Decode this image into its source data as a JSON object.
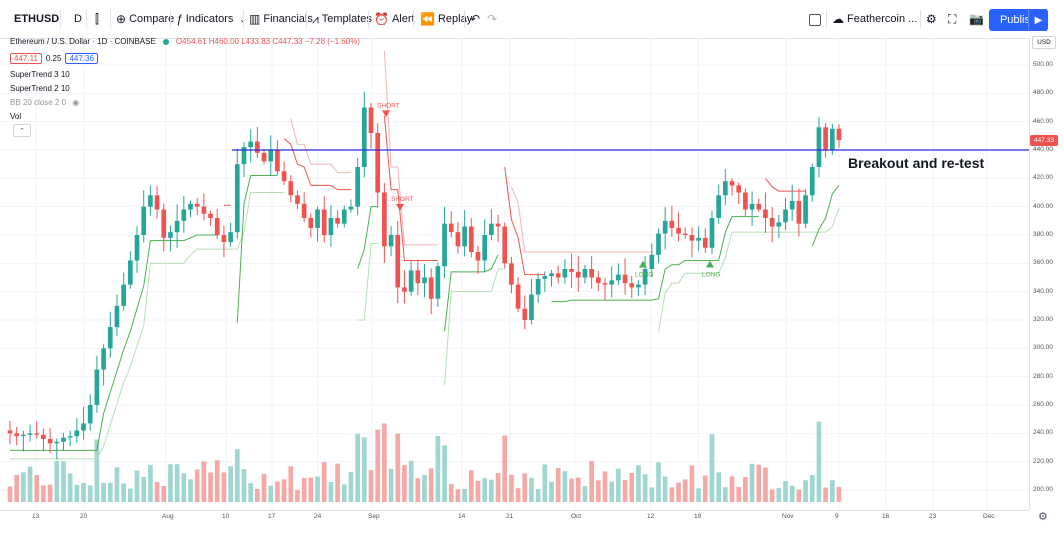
{
  "toolbar": {
    "symbol": "ETHUSD",
    "interval": "D",
    "compare": "Compare",
    "indicators": "Indicators",
    "financials": "Financials",
    "templates": "Templates",
    "alert": "Alert",
    "replay": "Replay",
    "layout_name": "Feathercoin ...",
    "publish": "Publish"
  },
  "legend": {
    "title": "Ethereum / U.S. Dollar · 1D · COINBASE",
    "ohlc": "O454.61 H460.00 L433.83 C447.33 −7.28 (−1.60%)",
    "bid": "447.11",
    "spread": "0.25",
    "ask": "447.36",
    "indicators": [
      "SuperTrend 3 10",
      "SuperTrend 2 10",
      "BB 20 close 2 0",
      "Vol"
    ]
  },
  "price_axis": {
    "currency": "USD",
    "last_price": "447.33",
    "ticks": [
      "500.00",
      "480.00",
      "460.00",
      "440.00",
      "420.00",
      "400.00",
      "380.00",
      "360.00",
      "340.00",
      "320.00",
      "300.00",
      "280.00",
      "260.00",
      "240.00",
      "220.00",
      "200.00"
    ]
  },
  "time_axis": [
    "13",
    "20",
    "Aug",
    "10",
    "17",
    "24",
    "Sep",
    "14",
    "21",
    "Oct",
    "12",
    "19",
    "Nov",
    "9",
    "16",
    "23",
    "Dec"
  ],
  "annotation": "Breakout and re-test",
  "signals": {
    "short": "SHORT",
    "long": "LONG"
  },
  "chart_data": {
    "type": "candlestick",
    "symbol": "ETHUSD",
    "ylim": [
      190,
      515
    ],
    "horizontal_level": 440,
    "colors": {
      "up": "#26a69a",
      "down": "#ef5350",
      "st_up": "#4caf50",
      "st_down": "#ef5350",
      "level": "#2a2ad6"
    },
    "closes": [
      240,
      238,
      239,
      240,
      239,
      236,
      233,
      234,
      237,
      238,
      242,
      247,
      260,
      285,
      300,
      315,
      330,
      345,
      362,
      380,
      400,
      408,
      398,
      378,
      382,
      390,
      398,
      402,
      400,
      395,
      392,
      380,
      375,
      382,
      430,
      442,
      446,
      438,
      432,
      440,
      425,
      418,
      408,
      402,
      392,
      385,
      398,
      380,
      392,
      388,
      398,
      400,
      428,
      470,
      452,
      410,
      372,
      380,
      343,
      340,
      355,
      346,
      350,
      335,
      358,
      388,
      382,
      372,
      386,
      368,
      362,
      380,
      388,
      386,
      360,
      345,
      328,
      320,
      338,
      349,
      351,
      353,
      350,
      356,
      354,
      350,
      356,
      350,
      346,
      345,
      348,
      352,
      346,
      343,
      345,
      356,
      366,
      381,
      390,
      385,
      381,
      380,
      376,
      378,
      371,
      392,
      408,
      418,
      415,
      410,
      398,
      402,
      398,
      392,
      386,
      389,
      398,
      404,
      388,
      408,
      428,
      456,
      440,
      455,
      447
    ],
    "supertrend_lines": "two ATR-based trailing lines (multipliers 3 and 2, period 10)"
  }
}
